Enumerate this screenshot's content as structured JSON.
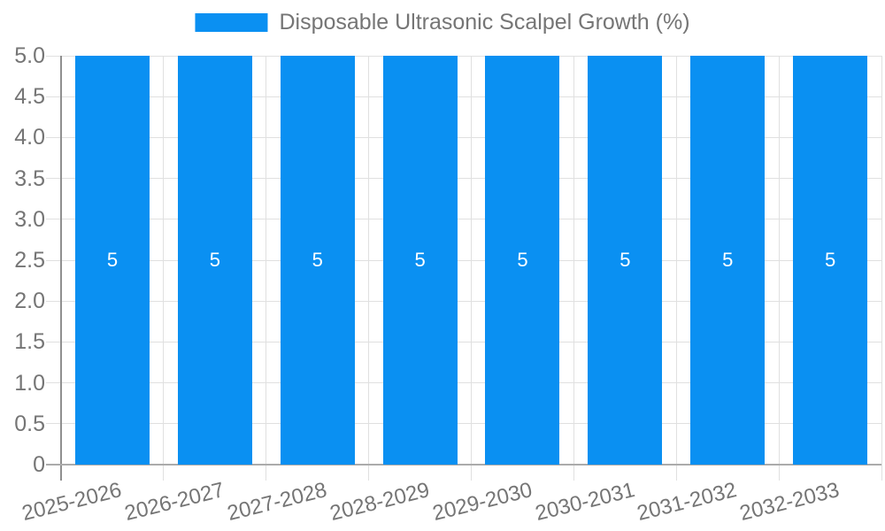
{
  "chart_data": {
    "type": "bar",
    "title": "",
    "categories": [
      "2025-2026",
      "2026-2027",
      "2027-2028",
      "2028-2029",
      "2029-2030",
      "2030-2031",
      "2031-2032",
      "2032-2033"
    ],
    "series": [
      {
        "name": "Disposable Ultrasonic Scalpel Growth (%)",
        "values": [
          5,
          5,
          5,
          5,
          5,
          5,
          5,
          5
        ],
        "bar_labels": [
          "5",
          "5",
          "5",
          "5",
          "5",
          "5",
          "5",
          "5"
        ]
      }
    ],
    "xlabel": "",
    "ylabel": "",
    "ylim": [
      0,
      5
    ],
    "y_tick_values": [
      0,
      0.5,
      1.0,
      1.5,
      2.0,
      2.5,
      3.0,
      3.5,
      4.0,
      4.5,
      5.0
    ],
    "y_tick_labels": [
      "0",
      "0.5",
      "1.0",
      "1.5",
      "2.0",
      "2.5",
      "3.0",
      "3.5",
      "4.0",
      "4.5",
      "5.0"
    ],
    "grid": "on",
    "legend_position": "top-center",
    "x_label_rotation_deg": -14,
    "bar_label_position": "inside-middle"
  },
  "colors": {
    "bar": "#0a90f2",
    "bar_value_text": "#ffffff",
    "axis_text": "#757575",
    "grid_line": "#e0e0e0",
    "y_axis_line": "#8f8f8f",
    "x_axis_line": "#ababab",
    "background": "#ffffff"
  }
}
